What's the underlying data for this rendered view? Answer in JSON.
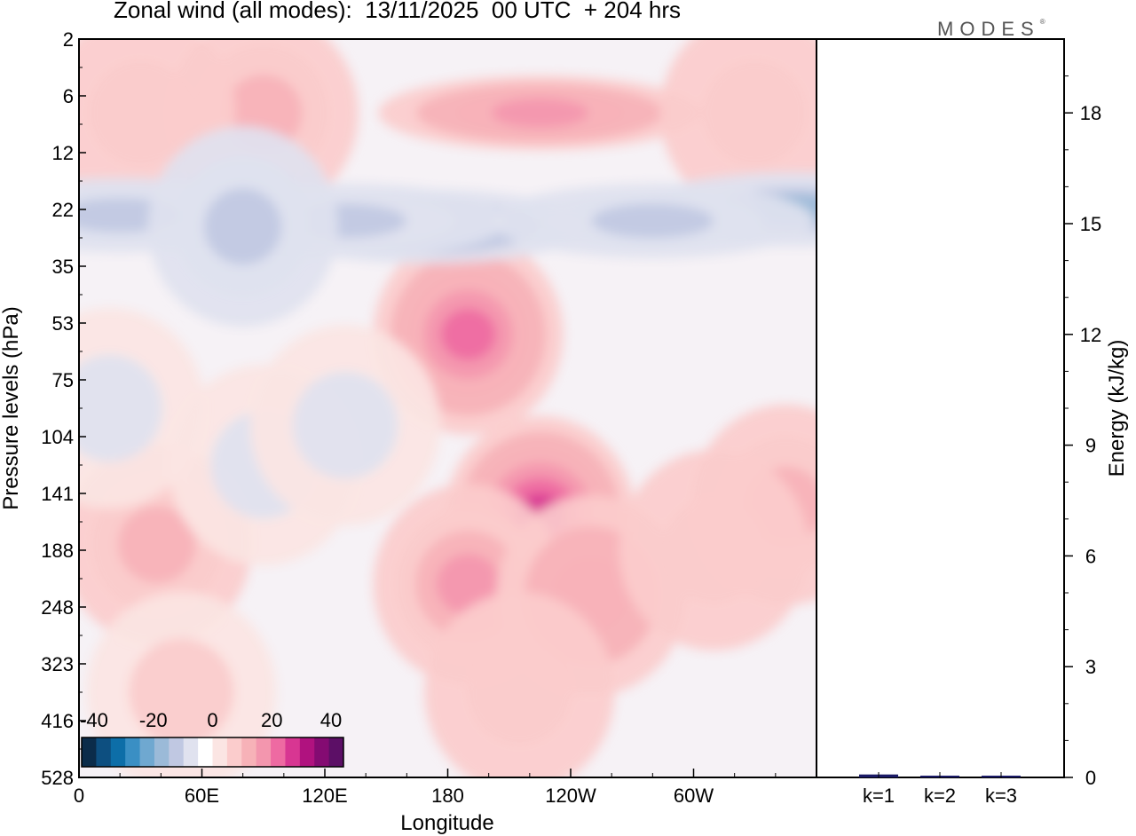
{
  "title": "Zonal wind (all modes):  13/11/2025  00 UTC  + 204 hrs",
  "brand": "MODES",
  "brand_mark": "®",
  "colors": {
    "palette": [
      "#0b2c4a",
      "#0d4f80",
      "#0d6ea8",
      "#3a8fc4",
      "#6fa8d0",
      "#9bbad8",
      "#c0c8e2",
      "#e0e2ef",
      "#fbe5e3",
      "#fbcccc",
      "#f7b2b8",
      "#f396ae",
      "#ee6aa2",
      "#d83692",
      "#b0127f",
      "#840b72",
      "#5c0f66"
    ],
    "zero": "#ffffff"
  },
  "chart_data": [
    {
      "type": "heatmap",
      "title": "Zonal wind (all modes):  13/11/2025  00 UTC  + 204 hrs",
      "xlabel": "Longitude",
      "ylabel": "Pressure levels (hPa)",
      "xlim": [
        0,
        360
      ],
      "x_ticks": [
        {
          "lon": 0,
          "label": "0"
        },
        {
          "lon": 60,
          "label": "60E"
        },
        {
          "lon": 120,
          "label": "120E"
        },
        {
          "lon": 180,
          "label": "180"
        },
        {
          "lon": 240,
          "label": "120W"
        },
        {
          "lon": 300,
          "label": "60W"
        }
      ],
      "y_levels": [
        "2",
        "6",
        "12",
        "22",
        "35",
        "53",
        "75",
        "104",
        "141",
        "188",
        "248",
        "323",
        "416",
        "528"
      ],
      "colorbar": {
        "range": [
          -40,
          40
        ],
        "ticks": [
          {
            "value": -40,
            "label": "-40"
          },
          {
            "value": -20,
            "label": "-20"
          },
          {
            "value": 0,
            "label": "0"
          },
          {
            "value": 20,
            "label": "20"
          },
          {
            "value": 40,
            "label": "40"
          }
        ]
      },
      "features": [
        {
          "lon": 190,
          "level": 5.2,
          "value": 20
        },
        {
          "lon": 225,
          "level": 1.3,
          "value": 16
        },
        {
          "lon": 90,
          "level": 1.3,
          "value": 9
        },
        {
          "lon": 30,
          "level": 1.3,
          "value": 7
        },
        {
          "lon": 330,
          "level": 1.3,
          "value": 7
        },
        {
          "lon": 350,
          "level": 3.0,
          "value": -14
        },
        {
          "lon": 170,
          "level": 3.3,
          "value": -12
        },
        {
          "lon": 130,
          "level": 3.2,
          "value": -11
        },
        {
          "lon": 280,
          "level": 3.2,
          "value": -11
        },
        {
          "lon": 20,
          "level": 3.1,
          "value": -10
        },
        {
          "lon": 80,
          "level": 3.3,
          "value": -8
        },
        {
          "lon": 225,
          "level": 8.4,
          "value": 24
        },
        {
          "lon": 190,
          "level": 9.6,
          "value": 14
        },
        {
          "lon": 250,
          "level": 9.8,
          "value": 12
        },
        {
          "lon": 345,
          "level": 8.2,
          "value": 11
        },
        {
          "lon": 310,
          "level": 9.0,
          "value": 7
        },
        {
          "lon": 38,
          "level": 8.9,
          "value": 9
        },
        {
          "lon": 215,
          "level": 11.5,
          "value": 6
        },
        {
          "lon": 50,
          "level": 11.5,
          "value": 4
        },
        {
          "lon": 90,
          "level": 7.5,
          "value": -4
        },
        {
          "lon": 130,
          "level": 6.8,
          "value": -4
        },
        {
          "lon": 15,
          "level": 6.5,
          "value": -3
        }
      ]
    },
    {
      "type": "bar",
      "categories": [
        "k=1",
        "k=2",
        "k=3"
      ],
      "values": [
        0.08,
        0.03,
        0.02
      ],
      "ylabel": "Energy (kJ/kg)",
      "ylim": [
        0,
        20
      ],
      "y_ticks": [
        {
          "value": 0,
          "label": "0"
        },
        {
          "value": 3,
          "label": "3"
        },
        {
          "value": 6,
          "label": "6"
        },
        {
          "value": 9,
          "label": "9"
        },
        {
          "value": 12,
          "label": "12"
        },
        {
          "value": 15,
          "label": "15"
        },
        {
          "value": 18,
          "label": "18"
        }
      ]
    }
  ]
}
